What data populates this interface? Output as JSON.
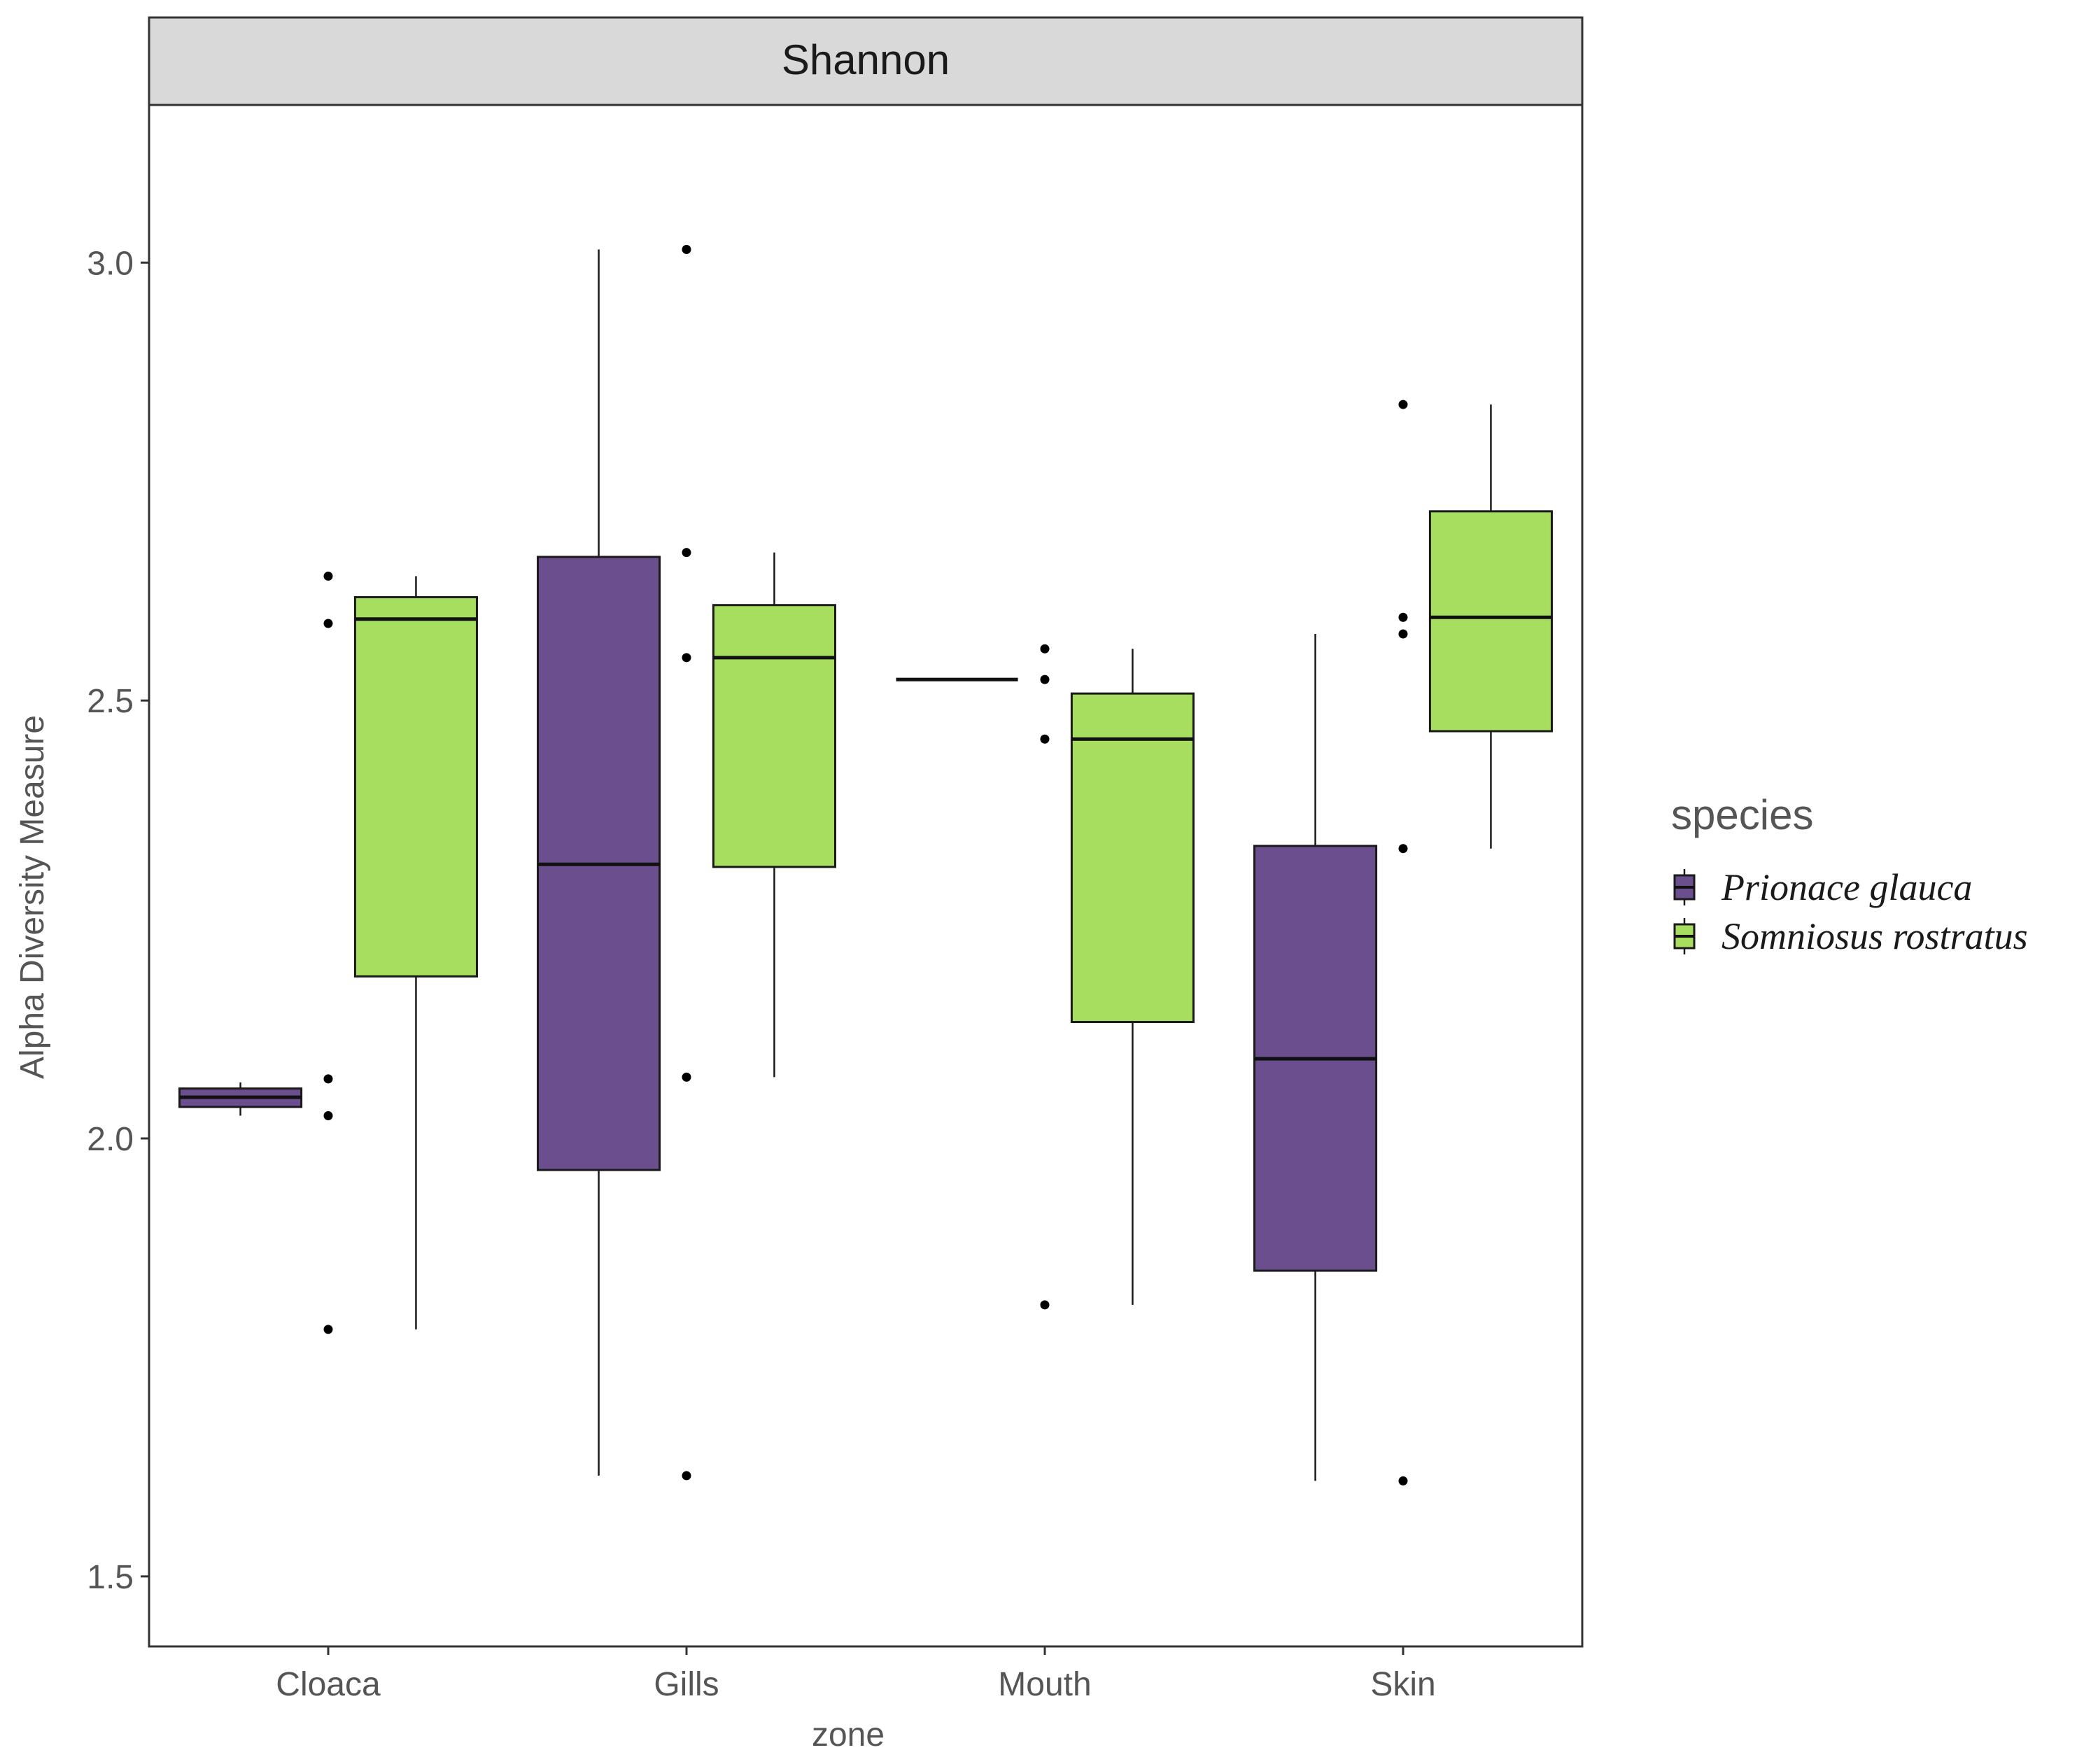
{
  "chart_data": {
    "type": "boxplot",
    "facet_title": "Shannon",
    "xlabel": "zone",
    "ylabel": "Alpha Diversity Measure",
    "ylim": [
      1.42,
      3.18
    ],
    "y_ticks": [
      1.5,
      2.0,
      2.5,
      3.0
    ],
    "y_tick_labels": [
      "1.5",
      "2.0",
      "2.5",
      "3.0"
    ],
    "categories": [
      "Cloaca",
      "Gills",
      "Mouth",
      "Skin"
    ],
    "legend": {
      "title": "species",
      "position": "right",
      "entries": [
        "Prionace glauca",
        "Somniosus rostratus"
      ]
    },
    "series": [
      {
        "name": "Prionace glauca",
        "color": "#6b4e8e",
        "boxes": [
          {
            "category": "Cloaca",
            "min": 2.026,
            "q1": 2.036,
            "median": 2.047,
            "q3": 2.057,
            "max": 2.064
          },
          {
            "category": "Gills",
            "min": 1.615,
            "q1": 1.964,
            "median": 2.313,
            "q3": 2.664,
            "max": 3.015
          },
          {
            "category": "Mouth",
            "min": 2.524,
            "q1": 2.524,
            "median": 2.524,
            "q3": 2.524,
            "max": 2.524
          },
          {
            "category": "Skin",
            "min": 1.609,
            "q1": 1.849,
            "median": 2.091,
            "q3": 2.334,
            "max": 2.576
          }
        ]
      },
      {
        "name": "Somniosus rostratus",
        "color": "#a8de60",
        "boxes": [
          {
            "category": "Cloaca",
            "min": 1.782,
            "q1": 2.185,
            "median": 2.593,
            "q3": 2.618,
            "max": 2.642
          },
          {
            "category": "Gills",
            "min": 2.07,
            "q1": 2.31,
            "median": 2.549,
            "q3": 2.609,
            "max": 2.669
          },
          {
            "category": "Mouth",
            "min": 1.81,
            "q1": 2.133,
            "median": 2.456,
            "q3": 2.508,
            "max": 2.559
          },
          {
            "category": "Skin",
            "min": 2.331,
            "q1": 2.465,
            "median": 2.595,
            "q3": 2.716,
            "max": 2.838
          }
        ]
      }
    ],
    "points": [
      {
        "category": "Cloaca",
        "values": [
          2.642,
          2.588,
          2.068,
          2.026,
          1.782
        ]
      },
      {
        "category": "Gills",
        "values": [
          3.015,
          2.669,
          2.549,
          2.07,
          1.615
        ]
      },
      {
        "category": "Mouth",
        "values": [
          2.559,
          2.524,
          2.456,
          1.81
        ]
      },
      {
        "category": "Skin",
        "values": [
          2.838,
          2.595,
          2.576,
          2.331,
          1.609
        ]
      }
    ]
  }
}
